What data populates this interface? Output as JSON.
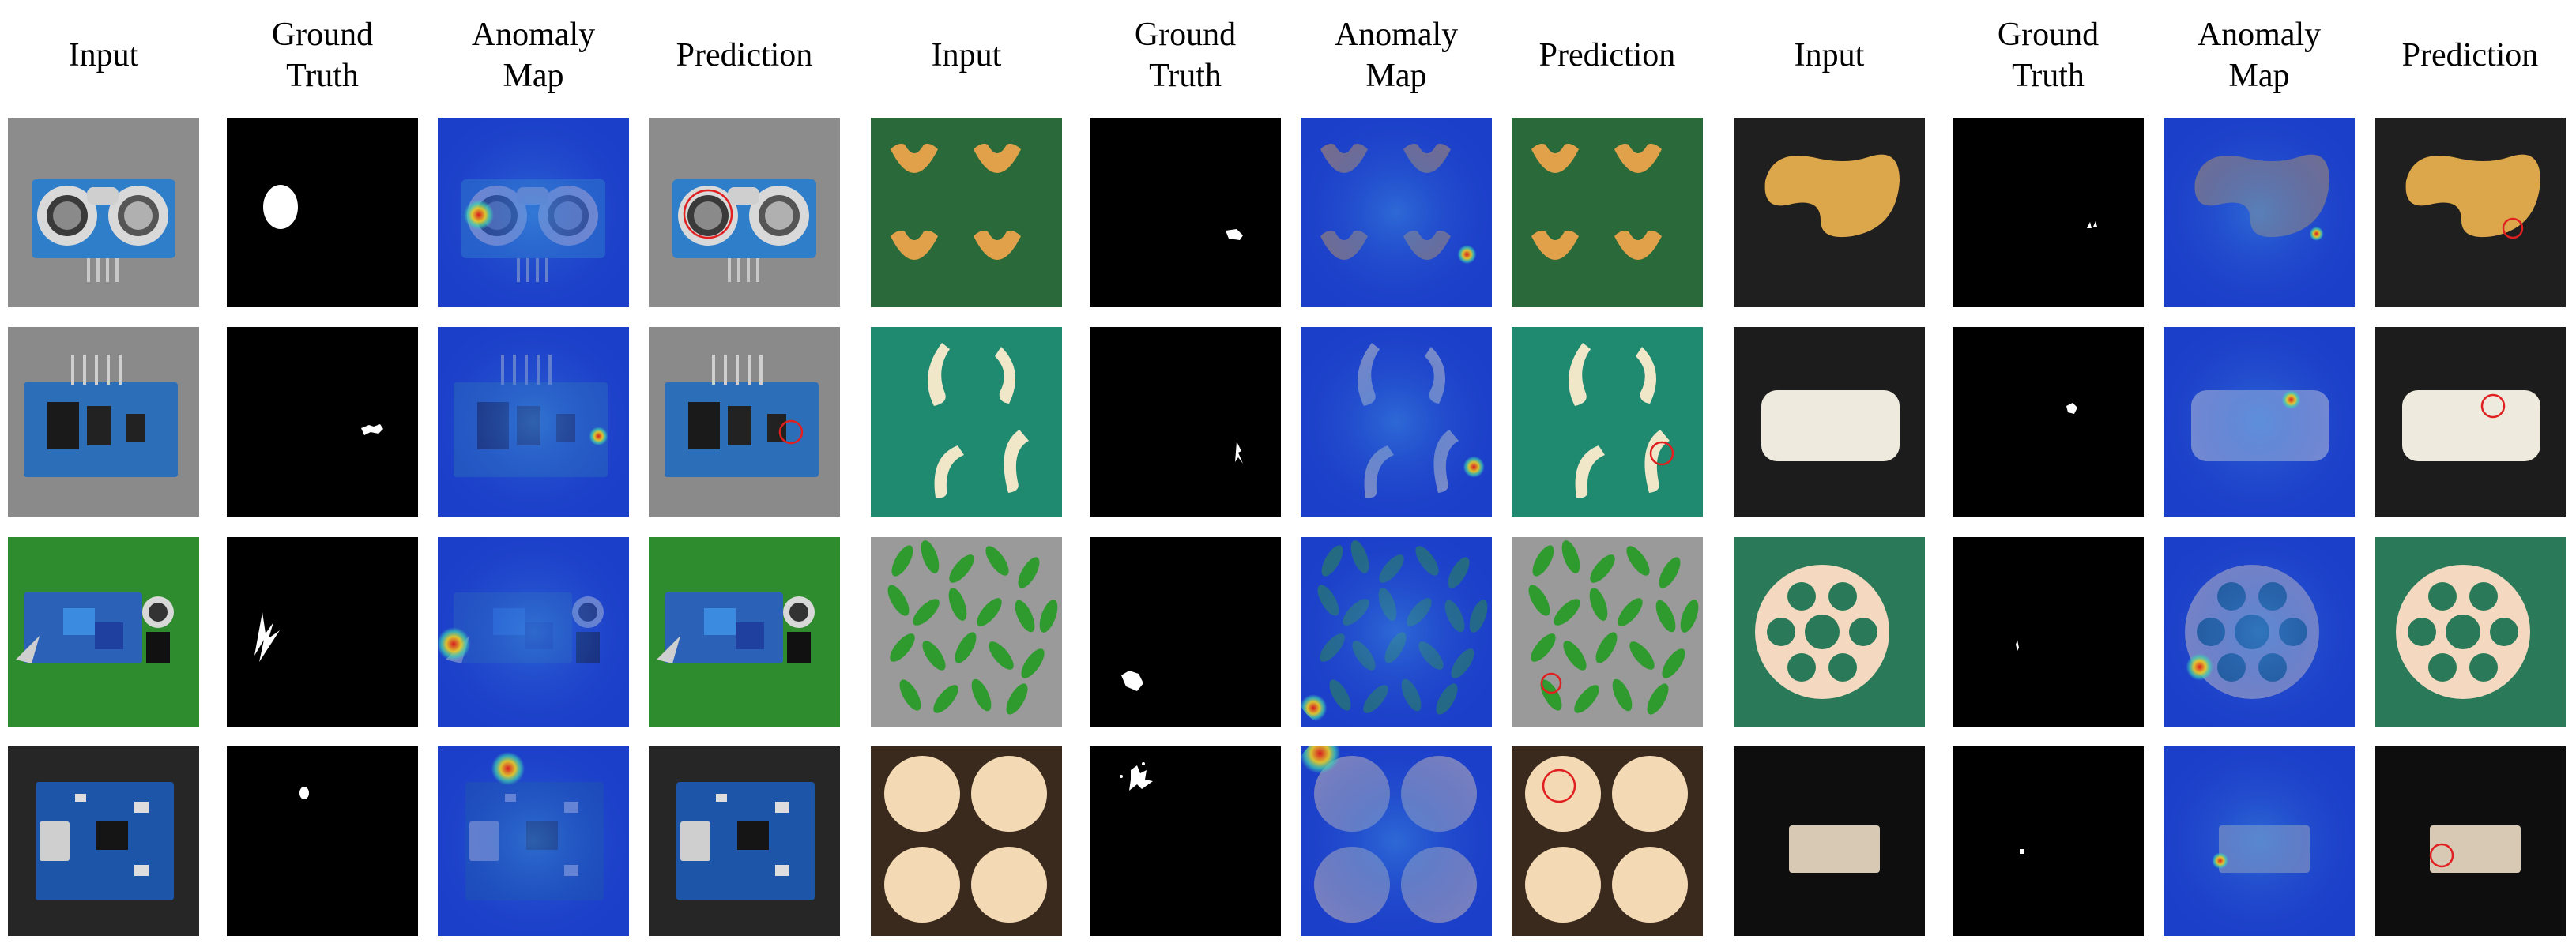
{
  "headers": {
    "input": "Input",
    "ground_truth": "Ground\nTruth",
    "anomaly_map": "Anomaly\nMap",
    "prediction": "Prediction"
  },
  "groups": [
    {
      "rows": [
        "ultrasonic-sensor",
        "ultrasonic-sensor-back",
        "ir-sensor-green",
        "charger-board"
      ]
    },
    {
      "rows": [
        "macaroni-green",
        "macaroni-teal",
        "green-capsules",
        "round-pills"
      ]
    },
    {
      "rows": [
        "cashew",
        "chewing-gum",
        "lotus-root-slice",
        "tube"
      ]
    }
  ],
  "colors": {
    "background": "#ffffff",
    "text": "#000000",
    "heatmap_low": "#1c3fc9",
    "heatmap_mid": "#3fd4b0",
    "heatmap_high": "#e01818",
    "prediction_outline": "#e02020"
  }
}
